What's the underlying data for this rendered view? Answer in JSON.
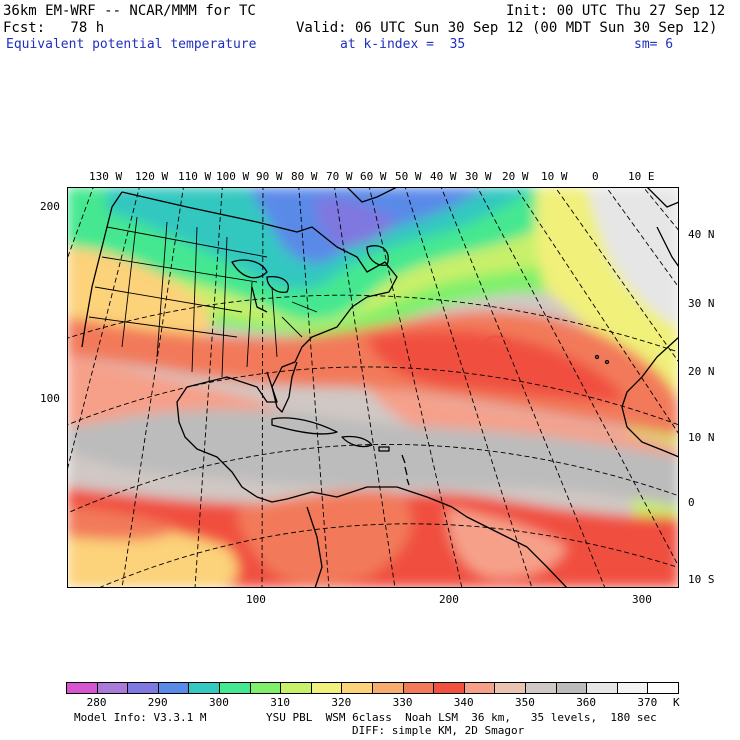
{
  "header": {
    "model": "36km EM-WRF -- NCAR/MMM for TC",
    "init": "Init: 00 UTC Thu 27 Sep 12",
    "fcst": "Fcst:   78 h",
    "valid": "Valid: 06 UTC Sun 30 Sep 12 (00 MDT Sun 30 Sep 12)",
    "field": "Equivalent potential temperature",
    "level": "at k-index =  35",
    "smooth": "sm= 6"
  },
  "top_lon_labels": [
    "130 W",
    "120 W",
    "110 W",
    "100 W",
    "90 W",
    "80 W",
    "70 W",
    "60 W",
    "50 W",
    "40 W",
    "30 W",
    "20 W",
    "10 W",
    "0",
    "10 E"
  ],
  "right_lat_labels": [
    "40 N",
    "30 N",
    "20 N",
    "10 N",
    "0",
    "10 S"
  ],
  "left_grid_labels": [
    "200",
    "100"
  ],
  "bottom_grid_labels": [
    "100",
    "200",
    "300"
  ],
  "colorbar": {
    "labels": [
      "280",
      "290",
      "300",
      "310",
      "320",
      "330",
      "340",
      "350",
      "360",
      "370"
    ],
    "unit": "K",
    "colors": [
      "#d855d2",
      "#a97ad9",
      "#7f78e0",
      "#5a8ae8",
      "#33c8c0",
      "#44e890",
      "#7ff06a",
      "#c8f06a",
      "#f0f07a",
      "#fcd27a",
      "#f8ac6e",
      "#f27a5a",
      "#f05040",
      "#f6a08a",
      "#e9c4b0",
      "#d0c8c4",
      "#bcbcbc",
      "#e6e6e6",
      "#f4f4f4",
      "#ffffff"
    ]
  },
  "footer": {
    "info": "Model Info: V3.3.1 M",
    "physics": "YSU PBL  WSM 6class  Noah LSM  36 km,   35 levels,  180 sec",
    "diff": "DIFF: simple KM, 2D Smagor"
  }
}
